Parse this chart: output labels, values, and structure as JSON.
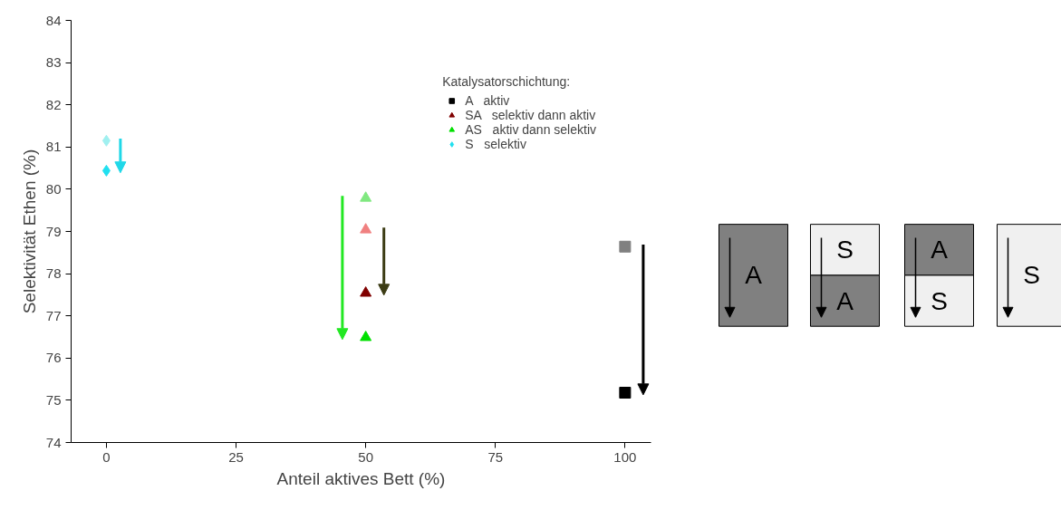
{
  "chart_data": {
    "type": "scatter",
    "xlabel": "Anteil aktives Bett (%)",
    "ylabel": "Selektivität Ethen (%)",
    "legend_title": "Katalysatorschichtung:",
    "xlim": [
      -6.8,
      105
    ],
    "xticks": [
      0,
      25,
      50,
      75,
      100
    ],
    "ylim": [
      74,
      84
    ],
    "yticks": [
      74,
      75,
      76,
      77,
      78,
      79,
      80,
      81,
      82,
      83,
      84
    ],
    "grid": false,
    "legend": "top right",
    "series": [
      {
        "name": "A   aktiv",
        "marker": "square",
        "color": "#000000",
        "colors": [
          "#808080",
          "#000000"
        ],
        "x": [
          100,
          100
        ],
        "values": [
          78.64,
          75.18
        ]
      },
      {
        "name": "SA   selektiv dann aktiv",
        "marker": "triangle",
        "color": "#3c3c14",
        "colors": [
          "#f08080",
          "#800000"
        ],
        "x": [
          50,
          50
        ],
        "values": [
          79.04,
          77.54
        ]
      },
      {
        "name": "AS   aktiv dann selektiv",
        "marker": "triangle",
        "color": "#22e822",
        "colors": [
          "#80e880",
          "#00e000"
        ],
        "x": [
          50,
          50
        ],
        "values": [
          79.79,
          76.49
        ]
      },
      {
        "name": "S   selektiv",
        "marker": "diamond",
        "color": "#20d8e8",
        "colors": [
          "#a0f0f0",
          "#20e0f0"
        ],
        "x": [
          0,
          0
        ],
        "values": [
          81.15,
          80.44
        ]
      }
    ],
    "annotations": [
      "A",
      "S",
      "A",
      "A",
      "S",
      "S"
    ]
  }
}
